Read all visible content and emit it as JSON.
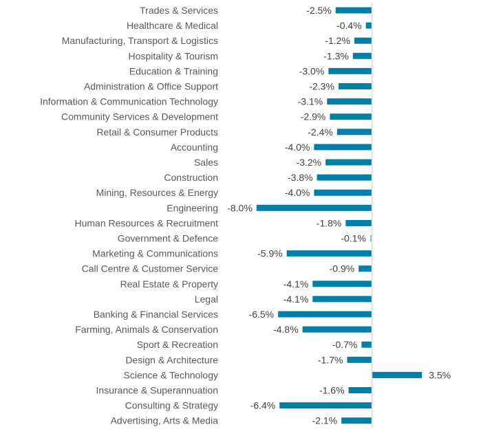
{
  "chart_data": {
    "type": "bar",
    "orientation": "horizontal",
    "title": "",
    "xlabel": "",
    "ylabel": "",
    "grid": false,
    "legend": "none",
    "bar_color": "#0080A8",
    "axis_color": "#D9D9D9",
    "label_color": "#595959",
    "value_format": "percent-1dp",
    "xlim": [
      -8.0,
      3.5
    ],
    "categories": [
      "Trades & Services",
      "Healthcare & Medical",
      "Manufacturing, Transport & Logistics",
      "Hospitality & Tourism",
      "Education & Training",
      "Administration & Office Support",
      "Information & Communication Technology",
      "Community Services & Development",
      "Retail & Consumer Products",
      "Accounting",
      "Sales",
      "Construction",
      "Mining, Resources & Energy",
      "Engineering",
      "Human Resources & Recruitment",
      "Government & Defence",
      "Marketing & Communications",
      "Call Centre & Customer Service",
      "Real Estate & Property",
      "Legal",
      "Banking & Financial Services",
      "Farming, Animals & Conservation",
      "Sport & Recreation",
      "Design & Architecture",
      "Science & Technology",
      "Insurance & Superannuation",
      "Consulting & Strategy",
      "Advertising, Arts & Media"
    ],
    "values": [
      -2.5,
      -0.4,
      -1.2,
      -1.3,
      -3.0,
      -2.3,
      -3.1,
      -2.9,
      -2.4,
      -4.0,
      -3.2,
      -3.8,
      -4.0,
      -8.0,
      -1.8,
      -0.1,
      -5.9,
      -0.9,
      -4.1,
      -4.1,
      -6.5,
      -4.8,
      -0.7,
      -1.7,
      3.5,
      -1.6,
      -6.4,
      -2.1
    ],
    "value_labels": [
      "-2.5%",
      "-0.4%",
      "-1.2%",
      "-1.3%",
      "-3.0%",
      "-2.3%",
      "-3.1%",
      "-2.9%",
      "-2.4%",
      "-4.0%",
      "-3.2%",
      "-3.8%",
      "-4.0%",
      "-8.0%",
      "-1.8%",
      "-0.1%",
      "-5.9%",
      "-0.9%",
      "-4.1%",
      "-4.1%",
      "-6.5%",
      "-4.8%",
      "-0.7%",
      "-1.7%",
      "3.5%",
      "-1.6%",
      "-6.4%",
      "-2.1%"
    ]
  }
}
